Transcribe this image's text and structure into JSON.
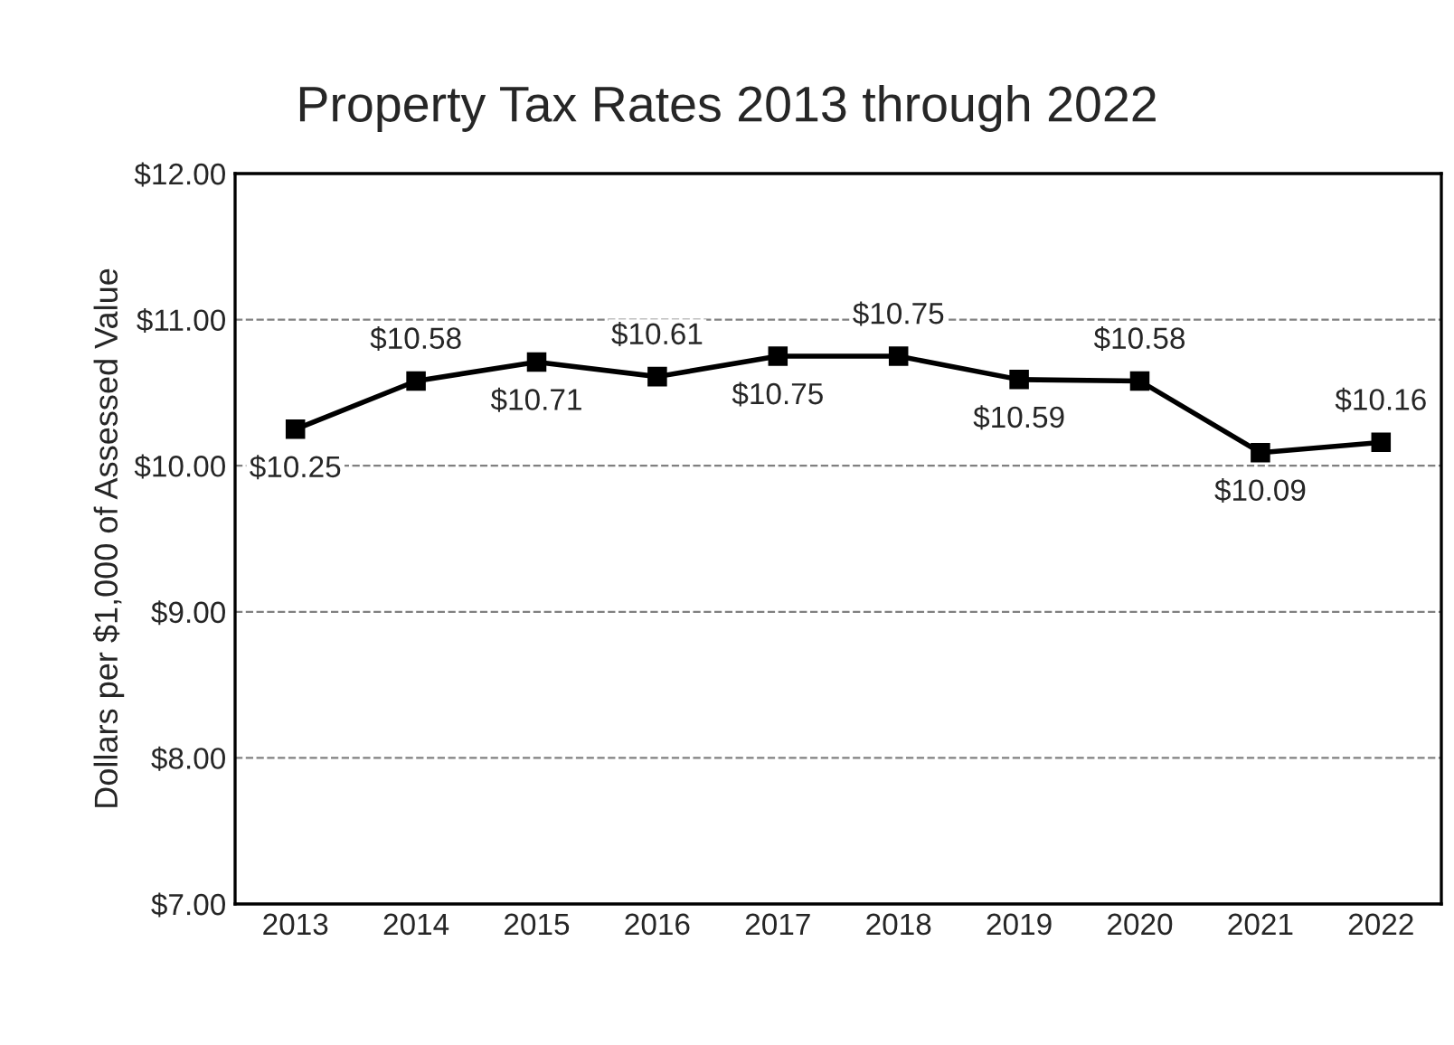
{
  "chart_data": {
    "type": "line",
    "title": "Property Tax Rates 2013 through 2022",
    "ylabel": "Dollars per $1,000 of Assessed Value",
    "categories": [
      "2013",
      "2014",
      "2015",
      "2016",
      "2017",
      "2018",
      "2019",
      "2020",
      "2021",
      "2022"
    ],
    "series": [
      {
        "color": "#000000",
        "values": [
          10.25,
          10.58,
          10.71,
          10.61,
          10.75,
          10.75,
          10.59,
          10.58,
          10.09,
          10.16
        ],
        "value_labels": [
          "$10.25",
          "$10.58",
          "$10.71",
          "$10.61",
          "$10.75",
          "$10.75",
          "$10.59",
          "$10.58",
          "$10.09",
          "$10.16"
        ]
      }
    ],
    "ylim": [
      7,
      12
    ],
    "yticks": [
      {
        "value": 7,
        "label": "$7.00"
      },
      {
        "value": 8,
        "label": "$8.00"
      },
      {
        "value": 9,
        "label": "$9.00"
      },
      {
        "value": 10,
        "label": "$10.00"
      },
      {
        "value": 11,
        "label": "$11.00"
      },
      {
        "value": 12,
        "label": "$12.00"
      }
    ],
    "grid": "y",
    "marker": "square",
    "line_style": "solid"
  }
}
